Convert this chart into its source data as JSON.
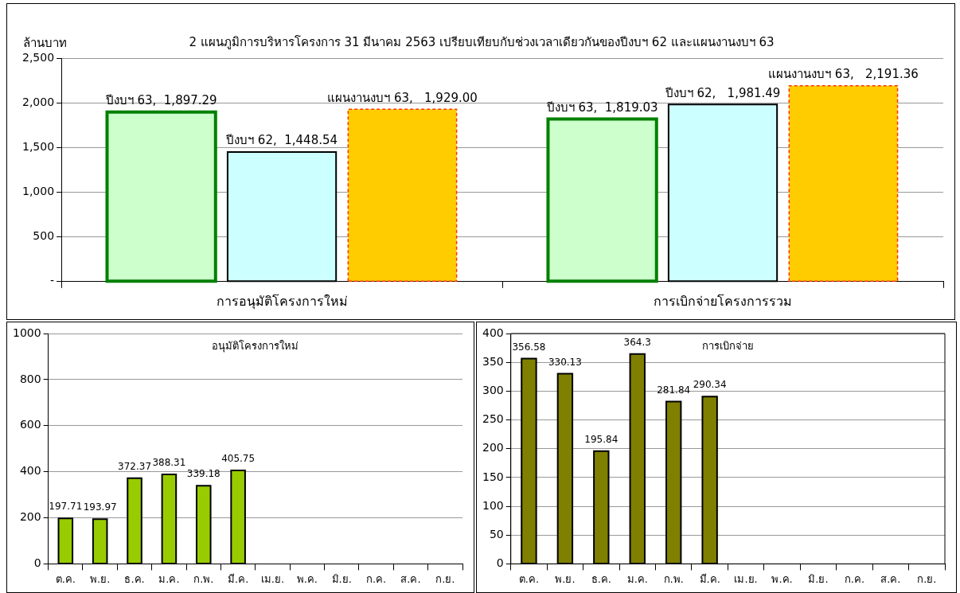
{
  "chart_data": [
    {
      "type": "bar",
      "title": "2 แผนภูมิการบริหารโครงการ 31 มีนาคม 2563 เปรียบเทียบกับช่วงเวลาเดียวกันของปีงบฯ 62 และแผนงานงบฯ 63",
      "ylabel": "ล้านบาท",
      "categories": [
        "การอนุมัติโครงการใหม่",
        "การเบิกจ่ายโครงการรวม"
      ],
      "series": [
        {
          "color": "#ccffcc",
          "values": [
            1897.29,
            1819.03
          ],
          "value_labels": [
            "ปีงบฯ 63,  1,897.29",
            "ปีงบฯ 63,  1,819.03"
          ]
        },
        {
          "color": "#ccffff",
          "values": [
            1448.54,
            1981.49
          ],
          "value_labels": [
            "ปีงบฯ 62,  1,448.54",
            "ปีงบฯ 62,   1,981.49"
          ]
        },
        {
          "color": "#ffcc00",
          "values": [
            1929.0,
            2191.36
          ],
          "value_labels": [
            "แผนงานงบฯ 63,   1,929.00",
            "แผนงานงบฯ 63,   2,191.36"
          ]
        }
      ],
      "ylim": [
        0,
        2500
      ],
      "yticks": [
        {
          "value": 0,
          "label": "-"
        },
        500,
        {
          "value": 1000,
          "label": "1,000"
        },
        {
          "value": 1500,
          "label": "1,500"
        },
        {
          "value": 2000,
          "label": "2,000"
        },
        {
          "value": 2500,
          "label": "2,500"
        }
      ],
      "grid": "y",
      "legend": false
    },
    {
      "type": "bar",
      "title": "อนุมัติโครงการใหม่",
      "categories": [
        "ต.ค.",
        "พ.ย.",
        "ธ.ค.",
        "ม.ค.",
        "ก.พ.",
        "มี.ค.",
        "เม.ย.",
        "พ.ค.",
        "มิ.ย.",
        "ก.ค.",
        "ส.ค.",
        "ก.ย."
      ],
      "values": [
        197.71,
        193.97,
        372.37,
        388.31,
        339.18,
        405.75,
        null,
        null,
        null,
        null,
        null,
        null
      ],
      "color": "#99cc00",
      "data_labels": true,
      "ylim": [
        0,
        1000
      ],
      "yticks": [
        0,
        200,
        400,
        600,
        800,
        1000
      ],
      "grid": "y",
      "legend": false
    },
    {
      "type": "bar",
      "title": "การเบิกจ่าย",
      "categories": [
        "ต.ค.",
        "พ.ย.",
        "ธ.ค.",
        "ม.ค.",
        "ก.พ.",
        "มี.ค.",
        "เม.ย.",
        "พ.ค.",
        "มิ.ย.",
        "ก.ค.",
        "ส.ค.",
        "ก.ย."
      ],
      "values": [
        356.58,
        330.13,
        195.84,
        364.3,
        281.84,
        290.34,
        null,
        null,
        null,
        null,
        null,
        null
      ],
      "color": "#808000",
      "data_labels": true,
      "ylim": [
        0,
        400
      ],
      "yticks": [
        0,
        50,
        100,
        150,
        200,
        250,
        300,
        350,
        400
      ],
      "grid": "y",
      "legend": false
    }
  ]
}
